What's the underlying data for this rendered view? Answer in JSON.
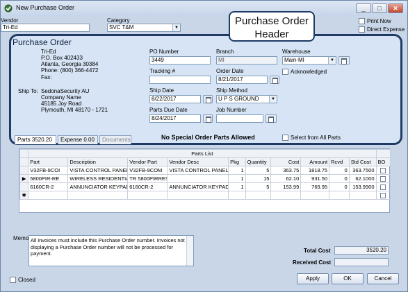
{
  "window": {
    "title": "New Purchase Order"
  },
  "top": {
    "vendor_label": "Vendor",
    "vendor_value": "Tri-Ed",
    "category_label": "Category",
    "category_value": "SVC T&M",
    "print_now_label": "Print Now",
    "direct_expense_label": "Direct Expense"
  },
  "callout": {
    "text": "Purchase Order Header"
  },
  "header": {
    "title": "Purchase Order",
    "vendor_lines": [
      "Tri-Ed",
      "P.O. Box 402433",
      "Atlanta, Georgia  30384",
      "Phone: (800) 366-4472",
      "Fax:"
    ],
    "ship_to_label": "Ship To:",
    "ship_to_lines": [
      "SedonaSecurity AU",
      "Company Name",
      "45185 Joy Road",
      "Plymouth, MI  48170 - 1721"
    ],
    "po_number_label": "PO Number",
    "po_number_value": "3449",
    "branch_label": "Branch",
    "branch_value": "MI",
    "warehouse_label": "Warehouse",
    "warehouse_value": "Main-MI",
    "acknowledged_label": "Acknowledged",
    "tracking_label": "Tracking #",
    "tracking_value": "",
    "order_date_label": "Order Date",
    "order_date_value": "8/21/2017",
    "ship_date_label": "Ship Date",
    "ship_date_value": "8/22/2017",
    "ship_method_label": "Ship Method",
    "ship_method_value": "U P S GROUND",
    "parts_due_label": "Parts Due Date",
    "parts_due_value": "8/24/2017",
    "job_number_label": "Job Number",
    "job_number_value": "",
    "special_notice": "No Special Order Parts Allowed",
    "select_all_label": "Select from All Parts"
  },
  "tabs": [
    {
      "label": "Parts",
      "value": "3520.20"
    },
    {
      "label": "Expense",
      "value": "0.00"
    },
    {
      "label": "Documents",
      "value": ""
    }
  ],
  "grid": {
    "caption": "Parts List",
    "columns": [
      "Part",
      "Description",
      "Vendor Part",
      "Vendor Desc",
      "Pkg",
      "Quantity",
      "Cost",
      "Amount",
      "Rcvd",
      "Std Cost",
      "BO"
    ],
    "rows": [
      [
        "V32FB-9COI",
        "VISTA CONTROL PANEL",
        "V32FB-9COM",
        "VISTA CONTROL PANEL",
        "1",
        "5",
        "363.75",
        "1818.75",
        "0",
        "363.7500"
      ],
      [
        "5800PIR-RE",
        "WIRELESS RESIDENTIA",
        "TR 5800PIRRES",
        "",
        "1",
        "15",
        "62.10",
        "931.50",
        "0",
        "62.1000"
      ],
      [
        "6160CR-2",
        "ANNUNCIATOR KEYPAD",
        "6160CR-2",
        "ANNUNCIATOR KEYPAD",
        "1",
        "5",
        "153.99",
        "769.95",
        "0",
        "153.9900"
      ]
    ],
    "row_markers": [
      "",
      "▶",
      "",
      "✱"
    ]
  },
  "memo": {
    "label": "Memo",
    "text": "All invoices must include this Purchase Order number.  Invoices not displaying a Purchase Order number will not be processed for payment."
  },
  "totals": {
    "total_cost_label": "Total Cost",
    "total_cost_value": "3520.20",
    "received_cost_label": "Received Cost",
    "received_cost_value": ""
  },
  "footer": {
    "closed_label": "Closed",
    "apply_label": "Apply",
    "ok_label": "OK",
    "cancel_label": "Cancel"
  }
}
